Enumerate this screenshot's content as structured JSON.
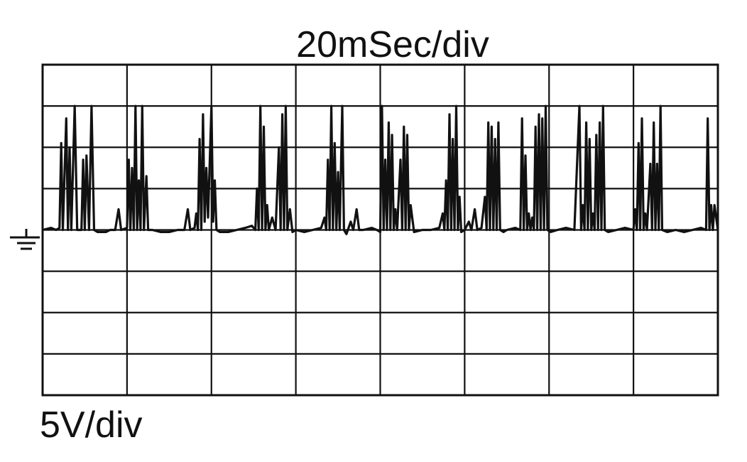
{
  "chart_data": {
    "type": "line",
    "title": "20mSec/div",
    "xlabel": "",
    "ylabel": "5V/div",
    "x_divisions": 8,
    "y_divisions": 8,
    "xlim": [
      0,
      8
    ],
    "ylim": [
      -4,
      4
    ],
    "ground_level": 0,
    "grid": true,
    "ground_symbol": "ground-icon",
    "trace_color": "#111111",
    "grid_color": "#111111",
    "series": [
      {
        "values": [
          [
            0.0,
            0.0
          ],
          [
            0.1,
            0.05
          ],
          [
            0.16,
            0.0
          ],
          [
            0.2,
            0.05
          ],
          [
            0.22,
            2.1
          ],
          [
            0.24,
            0.0
          ],
          [
            0.28,
            2.7
          ],
          [
            0.3,
            0.0
          ],
          [
            0.32,
            2.0
          ],
          [
            0.34,
            0.0
          ],
          [
            0.38,
            3.0
          ],
          [
            0.41,
            0.0
          ],
          [
            0.46,
            0.0
          ],
          [
            0.48,
            1.7
          ],
          [
            0.5,
            0.0
          ],
          [
            0.52,
            1.8
          ],
          [
            0.55,
            0.0
          ],
          [
            0.58,
            3.0
          ],
          [
            0.61,
            0.0
          ],
          [
            0.65,
            -0.05
          ],
          [
            0.75,
            -0.05
          ],
          [
            0.8,
            0.0
          ],
          [
            0.86,
            0.0
          ],
          [
            0.9,
            0.5
          ],
          [
            0.93,
            0.0
          ],
          [
            1.0,
            0.05
          ],
          [
            1.02,
            1.7
          ],
          [
            1.04,
            0.0
          ],
          [
            1.06,
            1.5
          ],
          [
            1.08,
            0.0
          ],
          [
            1.1,
            3.0
          ],
          [
            1.12,
            0.0
          ],
          [
            1.14,
            1.2
          ],
          [
            1.16,
            0.0
          ],
          [
            1.18,
            3.0
          ],
          [
            1.2,
            0.0
          ],
          [
            1.23,
            1.3
          ],
          [
            1.25,
            0.0
          ],
          [
            1.3,
            0.0
          ],
          [
            1.4,
            -0.05
          ],
          [
            1.5,
            -0.05
          ],
          [
            1.6,
            0.0
          ],
          [
            1.68,
            0.0
          ],
          [
            1.72,
            0.5
          ],
          [
            1.75,
            0.0
          ],
          [
            1.8,
            0.05
          ],
          [
            1.82,
            0.4
          ],
          [
            1.84,
            0.0
          ],
          [
            1.86,
            2.2
          ],
          [
            1.88,
            0.0
          ],
          [
            1.9,
            2.8
          ],
          [
            1.92,
            0.2
          ],
          [
            1.94,
            1.5
          ],
          [
            1.96,
            0.3
          ],
          [
            2.0,
            3.0
          ],
          [
            2.02,
            0.2
          ],
          [
            2.04,
            1.2
          ],
          [
            2.06,
            0.0
          ],
          [
            2.1,
            -0.05
          ],
          [
            2.2,
            -0.05
          ],
          [
            2.3,
            0.0
          ],
          [
            2.4,
            0.05
          ],
          [
            2.48,
            0.1
          ],
          [
            2.52,
            0.0
          ],
          [
            2.54,
            1.0
          ],
          [
            2.56,
            0.0
          ],
          [
            2.58,
            3.0
          ],
          [
            2.6,
            0.0
          ],
          [
            2.62,
            2.5
          ],
          [
            2.64,
            0.0
          ],
          [
            2.66,
            0.6
          ],
          [
            2.68,
            0.0
          ],
          [
            2.72,
            0.3
          ],
          [
            2.76,
            0.0
          ],
          [
            2.8,
            2.0
          ],
          [
            2.82,
            0.0
          ],
          [
            2.84,
            2.8
          ],
          [
            2.86,
            0.0
          ],
          [
            2.88,
            3.0
          ],
          [
            2.9,
            0.0
          ],
          [
            2.93,
            0.5
          ],
          [
            2.96,
            -0.05
          ],
          [
            3.0,
            0.0
          ],
          [
            3.1,
            -0.05
          ],
          [
            3.2,
            0.0
          ],
          [
            3.3,
            0.05
          ],
          [
            3.34,
            0.3
          ],
          [
            3.36,
            0.0
          ],
          [
            3.38,
            1.7
          ],
          [
            3.4,
            0.0
          ],
          [
            3.42,
            3.0
          ],
          [
            3.44,
            0.0
          ],
          [
            3.46,
            2.1
          ],
          [
            3.48,
            0.0
          ],
          [
            3.5,
            1.4
          ],
          [
            3.52,
            0.0
          ],
          [
            3.55,
            3.0
          ],
          [
            3.57,
            0.0
          ],
          [
            3.6,
            -0.1
          ],
          [
            3.65,
            0.2
          ],
          [
            3.68,
            0.0
          ],
          [
            3.72,
            0.5
          ],
          [
            3.75,
            0.0
          ],
          [
            3.8,
            0.0
          ],
          [
            3.9,
            0.05
          ],
          [
            3.96,
            0.0
          ],
          [
            4.0,
            -0.05
          ],
          [
            4.02,
            3.0
          ],
          [
            4.04,
            0.0
          ],
          [
            4.06,
            1.7
          ],
          [
            4.08,
            0.0
          ],
          [
            4.1,
            2.6
          ],
          [
            4.12,
            0.0
          ],
          [
            4.14,
            2.3
          ],
          [
            4.16,
            0.0
          ],
          [
            4.18,
            0.5
          ],
          [
            4.2,
            0.0
          ],
          [
            4.24,
            1.7
          ],
          [
            4.26,
            0.0
          ],
          [
            4.28,
            2.5
          ],
          [
            4.3,
            0.0
          ],
          [
            4.32,
            2.3
          ],
          [
            4.34,
            0.0
          ],
          [
            4.36,
            0.6
          ],
          [
            4.4,
            -0.05
          ],
          [
            4.5,
            0.0
          ],
          [
            4.6,
            0.0
          ],
          [
            4.7,
            0.05
          ],
          [
            4.74,
            0.4
          ],
          [
            4.76,
            0.0
          ],
          [
            4.78,
            1.2
          ],
          [
            4.8,
            0.0
          ],
          [
            4.82,
            2.8
          ],
          [
            4.84,
            0.0
          ],
          [
            4.86,
            2.2
          ],
          [
            4.88,
            0.0
          ],
          [
            4.9,
            3.0
          ],
          [
            4.92,
            0.0
          ],
          [
            4.94,
            0.8
          ],
          [
            4.96,
            -0.05
          ],
          [
            5.0,
            0.0
          ],
          [
            5.05,
            0.2
          ],
          [
            5.08,
            0.0
          ],
          [
            5.12,
            0.5
          ],
          [
            5.15,
            0.0
          ],
          [
            5.2,
            0.05
          ],
          [
            5.24,
            0.8
          ],
          [
            5.26,
            0.0
          ],
          [
            5.28,
            2.6
          ],
          [
            5.3,
            0.0
          ],
          [
            5.32,
            2.5
          ],
          [
            5.34,
            0.0
          ],
          [
            5.36,
            2.2
          ],
          [
            5.38,
            0.0
          ],
          [
            5.4,
            2.6
          ],
          [
            5.42,
            0.0
          ],
          [
            5.46,
            -0.05
          ],
          [
            5.5,
            0.0
          ],
          [
            5.6,
            0.05
          ],
          [
            5.66,
            0.0
          ],
          [
            5.68,
            2.7
          ],
          [
            5.7,
            0.0
          ],
          [
            5.72,
            1.8
          ],
          [
            5.74,
            0.0
          ],
          [
            5.76,
            0.4
          ],
          [
            5.78,
            0.0
          ],
          [
            5.8,
            0.3
          ],
          [
            5.82,
            0.0
          ],
          [
            5.84,
            2.5
          ],
          [
            5.86,
            0.0
          ],
          [
            5.88,
            2.8
          ],
          [
            5.9,
            0.0
          ],
          [
            5.92,
            2.7
          ],
          [
            5.94,
            0.0
          ],
          [
            5.96,
            3.0
          ],
          [
            5.98,
            0.0
          ],
          [
            6.02,
            -0.05
          ],
          [
            6.1,
            0.0
          ],
          [
            6.2,
            0.05
          ],
          [
            6.3,
            0.0
          ],
          [
            6.36,
            3.0
          ],
          [
            6.38,
            0.0
          ],
          [
            6.4,
            0.6
          ],
          [
            6.42,
            0.0
          ],
          [
            6.44,
            2.6
          ],
          [
            6.46,
            0.0
          ],
          [
            6.48,
            2.2
          ],
          [
            6.5,
            0.0
          ],
          [
            6.52,
            0.4
          ],
          [
            6.54,
            0.0
          ],
          [
            6.56,
            2.3
          ],
          [
            6.58,
            0.0
          ],
          [
            6.6,
            2.6
          ],
          [
            6.62,
            0.0
          ],
          [
            6.64,
            3.0
          ],
          [
            6.66,
            0.0
          ],
          [
            6.7,
            -0.05
          ],
          [
            6.8,
            0.0
          ],
          [
            6.9,
            0.05
          ],
          [
            7.0,
            0.0
          ],
          [
            7.02,
            0.5
          ],
          [
            7.04,
            0.0
          ],
          [
            7.06,
            2.1
          ],
          [
            7.08,
            0.0
          ],
          [
            7.1,
            2.7
          ],
          [
            7.12,
            0.0
          ],
          [
            7.14,
            0.4
          ],
          [
            7.16,
            0.0
          ],
          [
            7.2,
            1.6
          ],
          [
            7.22,
            0.0
          ],
          [
            7.24,
            2.6
          ],
          [
            7.26,
            0.0
          ],
          [
            7.28,
            1.6
          ],
          [
            7.3,
            0.0
          ],
          [
            7.32,
            3.0
          ],
          [
            7.34,
            0.0
          ],
          [
            7.4,
            -0.05
          ],
          [
            7.5,
            0.0
          ],
          [
            7.6,
            -0.05
          ],
          [
            7.7,
            0.0
          ],
          [
            7.8,
            0.05
          ],
          [
            7.86,
            0.0
          ],
          [
            7.88,
            2.7
          ],
          [
            7.9,
            0.0
          ],
          [
            7.92,
            0.6
          ],
          [
            7.94,
            0.0
          ],
          [
            7.96,
            0.6
          ],
          [
            8.0,
            0.0
          ]
        ]
      }
    ]
  }
}
